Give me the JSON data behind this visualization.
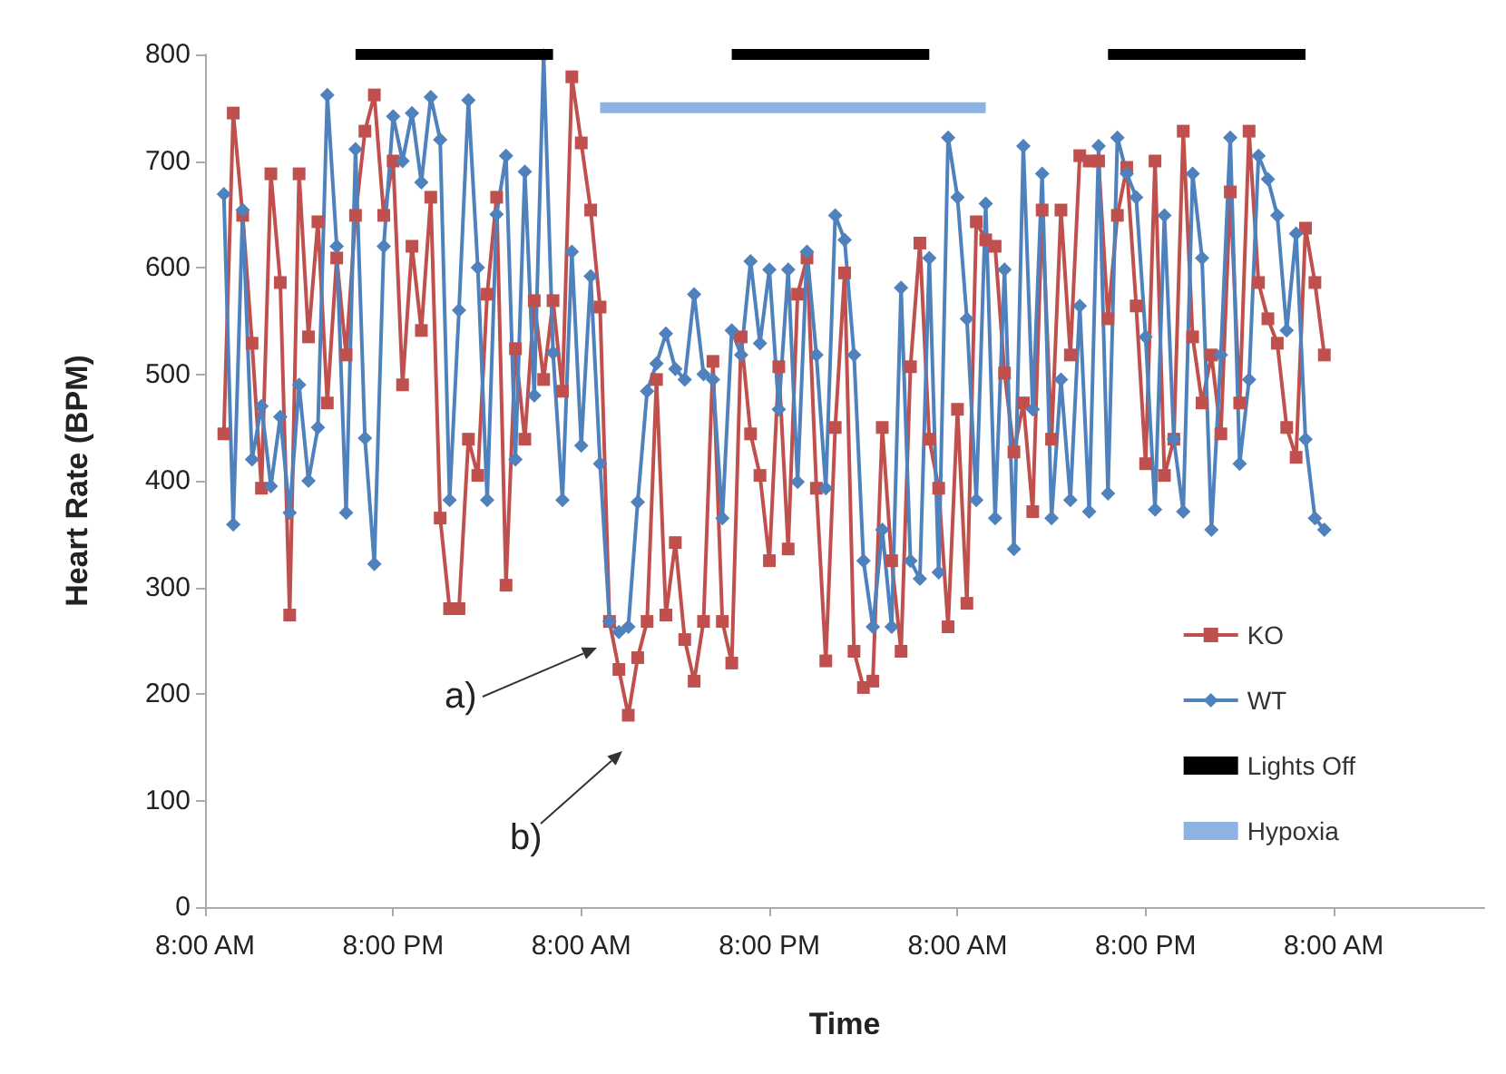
{
  "chart_data": {
    "type": "line",
    "xlabel": "Time",
    "ylabel": "Heart Rate (BPM)",
    "ylim": [
      0,
      800
    ],
    "yticks": [
      0,
      100,
      200,
      300,
      400,
      500,
      600,
      700,
      800
    ],
    "grid": false,
    "legend": "right",
    "annotations": [
      "a)",
      "b)"
    ],
    "categories": [
      "8:00 AM",
      null,
      null,
      null,
      null,
      null,
      null,
      null,
      null,
      null,
      null,
      null,
      null,
      null,
      null,
      null,
      null,
      null,
      null,
      null,
      "8:00 PM",
      null,
      null,
      null,
      null,
      null,
      null,
      null,
      null,
      null,
      null,
      null,
      null,
      null,
      null,
      null,
      null,
      null,
      null,
      null,
      "8:00 AM",
      null,
      null,
      null,
      null,
      null,
      null,
      null,
      null,
      null,
      null,
      null,
      null,
      null,
      null,
      null,
      null,
      null,
      null,
      null,
      "8:00 PM",
      null,
      null,
      null,
      null,
      null,
      null,
      null,
      null,
      null,
      null,
      null,
      null,
      null,
      null,
      null,
      null,
      null,
      null,
      null,
      "8:00 AM",
      null,
      null,
      null,
      null,
      null,
      null,
      null,
      null,
      null,
      null,
      null,
      null,
      null,
      null,
      null,
      null,
      null,
      null,
      null,
      "8:00 PM",
      null,
      null,
      null,
      null,
      null,
      null,
      null,
      null,
      null,
      null,
      null,
      null,
      null,
      null,
      null,
      null,
      null,
      null,
      null,
      "8:00 AM",
      null,
      null,
      null,
      null,
      null,
      null,
      null,
      null,
      null,
      null,
      null,
      null,
      null,
      null,
      null,
      null
    ],
    "series": [
      {
        "name": "KO",
        "color": "#c0504d",
        "marker": "square",
        "values": [
          null,
          null,
          444,
          745,
          649,
          529,
          393,
          688,
          586,
          274,
          688,
          535,
          643,
          473,
          609,
          518,
          649,
          728,
          762,
          649,
          700,
          490,
          620,
          541,
          666,
          365,
          280,
          280,
          439,
          405,
          575,
          666,
          302,
          524,
          439,
          569,
          495,
          569,
          484,
          779,
          717,
          654,
          563,
          268,
          223,
          180,
          234,
          268,
          495,
          274,
          342,
          251,
          212,
          268,
          512,
          268,
          229,
          535,
          444,
          405,
          325,
          507,
          336,
          575,
          609,
          393,
          231,
          450,
          595,
          240,
          206,
          212,
          450,
          325,
          240,
          507,
          623,
          439,
          393,
          263,
          467,
          285,
          643,
          626,
          620,
          501,
          427,
          473,
          371,
          654,
          439,
          654,
          518,
          705,
          700,
          700,
          552,
          649,
          694,
          564,
          416,
          700,
          405,
          439,
          728,
          535,
          473,
          518,
          444,
          671,
          473,
          728,
          586,
          552,
          529,
          450,
          422,
          637,
          586,
          518,
          null,
          null,
          null,
          null,
          null,
          null,
          null,
          null,
          null,
          null,
          null,
          null,
          null,
          null,
          null,
          null,
          null
        ]
      },
      {
        "name": "WT",
        "color": "#4f81bd",
        "marker": "diamond",
        "values": [
          null,
          null,
          669,
          359,
          654,
          420,
          470,
          395,
          460,
          370,
          490,
          400,
          450,
          762,
          620,
          370,
          711,
          440,
          322,
          620,
          742,
          700,
          745,
          680,
          760,
          720,
          382,
          560,
          757,
          600,
          382,
          650,
          705,
          420,
          690,
          480,
          799,
          520,
          382,
          615,
          433,
          592,
          416,
          268,
          258,
          263,
          380,
          484,
          510,
          538,
          505,
          495,
          575,
          500,
          495,
          365,
          541,
          518,
          606,
          529,
          598,
          467,
          598,
          399,
          615,
          518,
          393,
          649,
          626,
          518,
          325,
          263,
          354,
          263,
          581,
          325,
          308,
          609,
          314,
          722,
          666,
          552,
          382,
          660,
          365,
          598,
          336,
          714,
          467,
          688,
          365,
          495,
          382,
          564,
          371,
          714,
          388,
          722,
          688,
          666,
          535,
          373,
          649,
          439,
          371,
          688,
          609,
          354,
          518,
          722,
          416,
          495,
          705,
          683,
          649,
          541,
          632,
          439,
          365,
          354,
          null,
          null,
          null,
          null,
          null,
          null,
          null,
          null,
          null,
          null,
          null,
          null,
          null,
          null,
          null,
          null,
          null
        ]
      },
      {
        "name": "Lights Off",
        "color": "#000000",
        "marker": "none",
        "values": [
          null,
          null,
          null,
          null,
          null,
          null,
          null,
          null,
          null,
          null,
          null,
          null,
          null,
          null,
          null,
          null,
          800,
          800,
          800,
          800,
          800,
          800,
          800,
          800,
          800,
          800,
          800,
          800,
          800,
          800,
          800,
          800,
          800,
          800,
          800,
          800,
          800,
          800,
          null,
          null,
          null,
          null,
          null,
          null,
          null,
          null,
          null,
          null,
          null,
          null,
          null,
          null,
          null,
          null,
          null,
          null,
          800,
          800,
          800,
          800,
          800,
          800,
          800,
          800,
          800,
          800,
          800,
          800,
          800,
          800,
          800,
          800,
          800,
          800,
          800,
          800,
          800,
          800,
          null,
          null,
          null,
          null,
          null,
          null,
          null,
          null,
          null,
          null,
          null,
          null,
          null,
          null,
          null,
          null,
          null,
          null,
          800,
          800,
          800,
          800,
          800,
          800,
          800,
          800,
          800,
          800,
          800,
          800,
          800,
          800,
          800,
          800,
          800,
          800,
          800,
          800,
          800,
          800,
          null,
          null,
          null,
          null,
          null,
          null,
          null,
          null,
          null,
          null,
          null,
          null,
          null,
          null,
          null,
          null,
          null,
          null,
          null
        ]
      },
      {
        "name": "Hypoxia",
        "color": "#8db3e2",
        "marker": "none",
        "values": [
          null,
          null,
          null,
          null,
          null,
          null,
          null,
          null,
          null,
          null,
          null,
          null,
          null,
          null,
          null,
          null,
          null,
          null,
          null,
          null,
          null,
          null,
          null,
          null,
          null,
          null,
          null,
          null,
          null,
          null,
          null,
          null,
          null,
          null,
          null,
          null,
          null,
          null,
          null,
          null,
          null,
          null,
          750,
          750,
          750,
          750,
          750,
          750,
          750,
          750,
          750,
          750,
          750,
          750,
          750,
          750,
          750,
          750,
          750,
          750,
          750,
          750,
          750,
          750,
          750,
          750,
          750,
          750,
          750,
          750,
          750,
          750,
          750,
          750,
          750,
          750,
          750,
          750,
          750,
          750,
          750,
          750,
          750,
          750,
          null,
          null,
          null,
          null,
          null,
          null,
          null,
          null,
          null,
          null,
          null,
          null,
          null,
          null,
          null,
          null,
          null,
          null,
          null,
          null,
          null,
          null,
          null,
          null,
          null,
          null,
          null,
          null,
          null,
          null,
          null,
          null,
          null,
          null,
          null,
          null,
          null,
          null,
          null,
          null,
          null,
          null,
          null,
          null,
          null,
          null,
          null,
          null,
          null,
          null,
          null,
          null,
          null
        ]
      }
    ]
  }
}
